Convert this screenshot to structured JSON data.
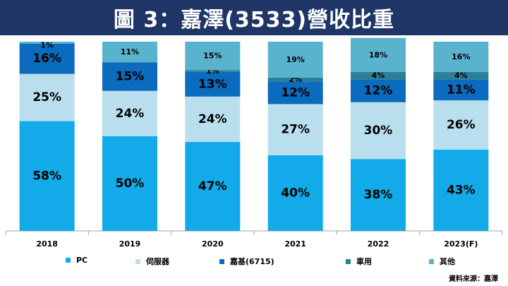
{
  "title": "圖 3：嘉澤(3533)營收比重",
  "source": "資料來源：嘉澤",
  "chart_data": {
    "type": "bar",
    "stacked": true,
    "percent": true,
    "categories": [
      "2018",
      "2019",
      "2020",
      "2021",
      "2022",
      "2023(F)"
    ],
    "ylim": [
      0,
      100
    ],
    "legend_position": "bottom",
    "series": [
      {
        "name": "PC",
        "color": "#12aae8",
        "values": [
          58,
          50,
          47,
          40,
          38,
          43
        ],
        "labels": [
          "58%",
          "50%",
          "47%",
          "40%",
          "38%",
          "43%"
        ]
      },
      {
        "name": "伺服器",
        "color": "#b9dfee",
        "values": [
          25,
          24,
          24,
          27,
          30,
          26
        ],
        "labels": [
          "25%",
          "24%",
          "24%",
          "27%",
          "30%",
          "26%"
        ]
      },
      {
        "name": "嘉基(6715)",
        "color": "#0b6bbe",
        "values": [
          16,
          15,
          13,
          12,
          12,
          11
        ],
        "labels": [
          "16%",
          "15%",
          "13%",
          "12%",
          "12%",
          "11%"
        ]
      },
      {
        "name": "車用",
        "color": "#2b7f96",
        "values": [
          0,
          0,
          1,
          2,
          4,
          4
        ],
        "labels": [
          "",
          "",
          "1%",
          "2%",
          "4%",
          "4%"
        ]
      },
      {
        "name": "其他",
        "color": "#5ab3cd",
        "values": [
          1,
          11,
          15,
          19,
          18,
          16
        ],
        "labels": [
          "1%",
          "11%",
          "15%",
          "19%",
          "18%",
          "16%"
        ]
      }
    ]
  }
}
